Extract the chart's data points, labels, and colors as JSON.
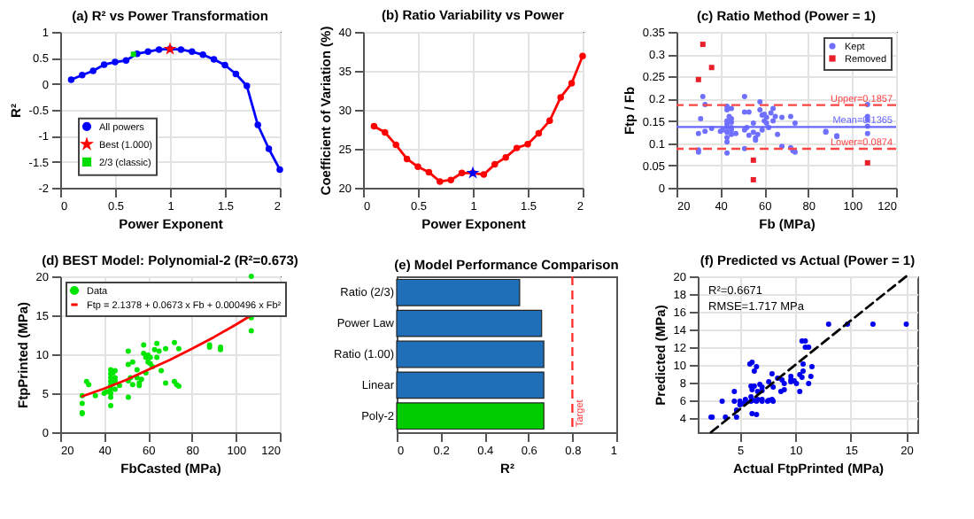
{
  "chart_data": [
    {
      "type": "line",
      "title": "(a) R² vs Power Transformation",
      "xlabel": "Power Exponent",
      "ylabel": "R²",
      "xlim": [
        0,
        2
      ],
      "ylim": [
        -2,
        1
      ],
      "xticks": [
        0,
        0.5,
        1,
        1.5,
        2
      ],
      "yticks": [
        -2,
        -1.5,
        -1,
        -0.5,
        0,
        0.5,
        1
      ],
      "grid": true,
      "legend": "left",
      "series": [
        {
          "name": "All powers",
          "type": "line",
          "marker": "circle",
          "color": "#0000ff",
          "x": [
            0.1,
            0.2,
            0.3,
            0.4,
            0.5,
            0.6,
            0.7,
            0.8,
            0.9,
            1.0,
            1.1,
            1.2,
            1.3,
            1.4,
            1.5,
            1.6,
            1.7,
            1.8,
            1.9,
            2.0
          ],
          "values": [
            0.08,
            0.17,
            0.25,
            0.37,
            0.42,
            0.45,
            0.58,
            0.62,
            0.66,
            0.67,
            0.66,
            0.62,
            0.56,
            0.47,
            0.36,
            0.19,
            -0.04,
            -0.79,
            -1.25,
            -1.65
          ]
        },
        {
          "name": "Best (1.000)",
          "type": "scatter",
          "marker": "star",
          "color": "#ff0000",
          "x": [
            1.0
          ],
          "values": [
            0.67
          ]
        },
        {
          "name": "2/3 (classic)",
          "type": "scatter",
          "marker": "square",
          "color": "#00dd00",
          "x": [
            0.667
          ],
          "values": [
            0.57
          ]
        }
      ]
    },
    {
      "type": "line",
      "title": "(b) Ratio Variability vs Power",
      "xlabel": "Power Exponent",
      "ylabel": "Coefficient of Variation (%)",
      "xlim": [
        0,
        2
      ],
      "ylim": [
        20,
        40
      ],
      "xticks": [
        0,
        0.5,
        1,
        1.5,
        2
      ],
      "yticks": [
        20,
        25,
        30,
        35,
        40
      ],
      "grid": true,
      "series": [
        {
          "type": "line",
          "marker": "circle",
          "color": "#ff0000",
          "x": [
            0.1,
            0.2,
            0.3,
            0.4,
            0.5,
            0.6,
            0.7,
            0.8,
            0.9,
            1.0,
            1.1,
            1.2,
            1.3,
            1.4,
            1.5,
            1.6,
            1.7,
            1.8,
            1.9,
            2.0
          ],
          "values": [
            27.9,
            27.1,
            25.5,
            23.7,
            22.7,
            22.0,
            20.8,
            21.0,
            21.9,
            21.9,
            21.7,
            23.0,
            23.9,
            25.1,
            25.6,
            27.0,
            28.6,
            31.6,
            33.4,
            36.9
          ]
        },
        {
          "type": "scatter",
          "marker": "star",
          "color": "#0000ff",
          "x": [
            1.0
          ],
          "values": [
            21.9
          ]
        }
      ]
    },
    {
      "type": "scatter",
      "title": "(c) Ratio Method (Power = 1)",
      "xlabel": "Fb (MPa)",
      "ylabel": "Ftp / Fb",
      "xlim": [
        20,
        120
      ],
      "ylim": [
        0,
        0.35
      ],
      "xticks": [
        20,
        40,
        60,
        80,
        100,
        120
      ],
      "yticks": [
        0,
        0.05,
        0.1,
        0.15,
        0.2,
        0.25,
        0.3,
        0.35
      ],
      "grid": true,
      "legend": "top right",
      "series": [
        {
          "name": "Kept",
          "type": "scatter",
          "marker": "circle",
          "color": "#7070ff",
          "x": [
            30,
            30,
            30,
            31,
            32,
            33,
            33,
            36,
            40,
            41,
            43,
            43,
            43,
            43,
            43,
            43,
            43,
            43,
            43,
            44,
            45,
            45,
            45,
            45,
            45,
            45,
            47,
            51,
            51,
            51,
            51,
            52,
            53,
            53,
            55,
            55,
            56,
            56,
            57,
            58,
            58,
            59,
            59,
            60,
            60,
            61,
            61,
            62,
            63,
            64,
            64,
            65,
            66,
            68,
            68,
            72,
            72,
            73,
            74,
            74,
            88,
            88,
            93,
            93,
            107,
            107,
            107,
            107,
            107
          ],
          "values": [
            0.08,
            0.085,
            0.122,
            0.155,
            0.205,
            0.187,
            0.127,
            0.133,
            0.127,
            0.13,
            0.183,
            0.175,
            0.15,
            0.143,
            0.135,
            0.125,
            0.113,
            0.103,
            0.078,
            0.16,
            0.178,
            0.155,
            0.147,
            0.135,
            0.12,
            0.13,
            0.122,
            0.205,
            0.17,
            0.13,
            0.088,
            0.135,
            0.17,
            0.118,
            0.145,
            0.125,
            0.112,
            0.107,
            0.12,
            0.193,
            0.175,
            0.163,
            0.13,
            0.15,
            0.165,
            0.158,
            0.145,
            0.135,
            0.168,
            0.15,
            0.178,
            0.16,
            0.12,
            0.158,
            0.093,
            0.16,
            0.09,
            0.083,
            0.145,
            0.08,
            0.127,
            0.125,
            0.117,
            0.115,
            0.187,
            0.16,
            0.152,
            0.138,
            0.122
          ]
        },
        {
          "name": "Removed",
          "type": "scatter",
          "marker": "square",
          "color": "#e8202a",
          "x": [
            30,
            32,
            36,
            55,
            55,
            107
          ],
          "values": [
            0.243,
            0.322,
            0.27,
            0.062,
            0.018,
            0.056
          ]
        }
      ],
      "ref_lines": [
        {
          "axis": "y",
          "value": 0.1857,
          "label": "Upper=0.1857",
          "color": "#ff4444",
          "line_style": "dashed"
        },
        {
          "axis": "y",
          "value": 0.1365,
          "label": "Mean=0.1365",
          "color": "#6666ff",
          "line_style": "solid"
        },
        {
          "axis": "y",
          "value": 0.0874,
          "label": "Lower=0.0874",
          "color": "#ff4444",
          "line_style": "dashed"
        }
      ]
    },
    {
      "type": "scatter",
      "title": "(d) BEST Model: Polynomial-2 (R²=0.673)",
      "xlabel": "FbCasted (MPa)",
      "ylabel": "FtpPrinted (MPa)",
      "xlim": [
        20,
        120
      ],
      "ylim": [
        0,
        20
      ],
      "xticks": [
        20,
        40,
        60,
        80,
        100,
        120
      ],
      "yticks": [
        0,
        5,
        10,
        15,
        20
      ],
      "grid": true,
      "legend": "top left",
      "series": [
        {
          "name": "Data",
          "type": "scatter",
          "marker": "circle",
          "color": "#00e600",
          "x": [
            30,
            30,
            30,
            30,
            32,
            33,
            36,
            40,
            41,
            43,
            43,
            43,
            43,
            43,
            43,
            43,
            43,
            43,
            44,
            44,
            45,
            45,
            45,
            45,
            47,
            51,
            51,
            51,
            51,
            52,
            53,
            53,
            55,
            55,
            56,
            56,
            57,
            58,
            58,
            59,
            59,
            60,
            60,
            61,
            61,
            62,
            63,
            64,
            64,
            65,
            66,
            68,
            68,
            72,
            72,
            73,
            74,
            74,
            88,
            88,
            93,
            93,
            107,
            107,
            107
          ],
          "values": [
            2.4,
            2.5,
            3.7,
            4.7,
            6.5,
            6.1,
            4.7,
            5.0,
            5.2,
            3.4,
            4.5,
            5.0,
            5.5,
            6.0,
            6.5,
            7.0,
            7.5,
            8.0,
            6.2,
            7.6,
            5.5,
            6.6,
            7.0,
            7.9,
            6.0,
            4.5,
            6.6,
            8.7,
            10.4,
            7.0,
            6.1,
            9.0,
            7.0,
            8.0,
            6.0,
            6.3,
            6.8,
            11.2,
            10.1,
            7.6,
            9.6,
            9.0,
            9.9,
            8.8,
            9.6,
            8.4,
            10.6,
            9.6,
            11.4,
            10.4,
            7.9,
            6.3,
            10.7,
            11.5,
            6.5,
            6.1,
            5.9,
            10.7,
            11.2,
            10.9,
            10.9,
            10.6,
            13.0,
            14.7,
            20.0
          ]
        },
        {
          "name": "Ftp = 2.1378 + 0.0673 x Fb + 0.000496 x Fb²",
          "type": "line",
          "marker": "none",
          "color": "#ff0000",
          "x": [
            30,
            40,
            50,
            60,
            70,
            80,
            90,
            100,
            107
          ],
          "values": [
            4.6,
            5.6,
            6.7,
            8.0,
            9.3,
            10.7,
            12.2,
            13.8,
            15.0
          ]
        }
      ]
    },
    {
      "type": "bar",
      "orientation": "horizontal",
      "title": "(e) Model Performance Comparison",
      "xlabel": "R²",
      "categories": [
        "Ratio (2/3)",
        "Power Law",
        "Ratio (1.00)",
        "Linear",
        "Poly-2"
      ],
      "values": [
        0.56,
        0.66,
        0.67,
        0.67,
        0.67
      ],
      "colors": [
        "#1f6fb8",
        "#1f6fb8",
        "#1f6fb8",
        "#1f6fb8",
        "#00cc00"
      ],
      "xlim": [
        0,
        1
      ],
      "xticks": [
        0,
        0.2,
        0.4,
        0.6,
        0.8,
        1
      ],
      "ref_lines": [
        {
          "axis": "x",
          "value": 0.8,
          "label": "Target",
          "color": "#ff3333",
          "line_style": "dashed"
        }
      ]
    },
    {
      "type": "scatter",
      "title": "(f) Predicted vs Actual (Power = 1)",
      "xlabel": "Actual FtpPrinted (MPa)",
      "ylabel": "Predicted (MPa)",
      "xlim": [
        1.2,
        21
      ],
      "ylim": [
        2.4,
        20
      ],
      "xticks": [
        5,
        10,
        15,
        20
      ],
      "yticks": [
        4,
        6,
        8,
        10,
        12,
        14,
        16,
        18,
        20
      ],
      "grid": true,
      "annotations": [
        "R²=0.6671",
        "RMSE=1.717 MPa"
      ],
      "series": [
        {
          "type": "scatter",
          "marker": "circle",
          "color": "#0000ee",
          "x": [
            2.4,
            2.5,
            3.7,
            4.7,
            6.5,
            6.1,
            4.7,
            5.0,
            5.2,
            3.4,
            4.5,
            5.0,
            5.5,
            6.0,
            6.5,
            7.0,
            7.5,
            8.0,
            6.2,
            7.6,
            5.5,
            6.6,
            7.0,
            7.9,
            6.0,
            4.5,
            6.6,
            8.7,
            10.4,
            7.0,
            6.1,
            9.0,
            7.0,
            8.0,
            6.0,
            6.3,
            6.8,
            11.2,
            10.1,
            7.6,
            9.6,
            9.0,
            9.9,
            8.8,
            9.6,
            8.4,
            10.6,
            9.6,
            11.4,
            10.4,
            7.9,
            6.3,
            10.7,
            11.5,
            6.5,
            6.1,
            5.9,
            10.7,
            11.2,
            10.9,
            10.9,
            10.6,
            13.0,
            14.7,
            20.0,
            17.0
          ],
          "values": [
            4.1,
            4.1,
            4.1,
            4.1,
            4.4,
            4.5,
            4.9,
            5.5,
            5.6,
            5.9,
            5.9,
            5.9,
            5.9,
            5.9,
            5.9,
            5.9,
            5.9,
            5.9,
            6.0,
            6.0,
            6.1,
            6.1,
            6.1,
            6.1,
            6.4,
            7.0,
            7.0,
            7.0,
            7.0,
            7.1,
            7.2,
            7.2,
            7.5,
            7.5,
            7.6,
            7.6,
            7.8,
            7.9,
            7.9,
            8.1,
            8.1,
            7.9,
            8.2,
            8.3,
            8.3,
            8.5,
            8.6,
            8.7,
            8.7,
            8.9,
            9.0,
            9.3,
            9.3,
            9.8,
            9.8,
            10.3,
            10.1,
            10.1,
            12.0,
            12.0,
            12.7,
            12.7,
            14.6,
            14.6,
            14.6,
            14.6
          ]
        },
        {
          "type": "line",
          "marker": "none",
          "line_style": "dashed",
          "color": "#000000",
          "x": [
            2.4,
            20
          ],
          "values": [
            2.4,
            20
          ]
        }
      ]
    }
  ]
}
